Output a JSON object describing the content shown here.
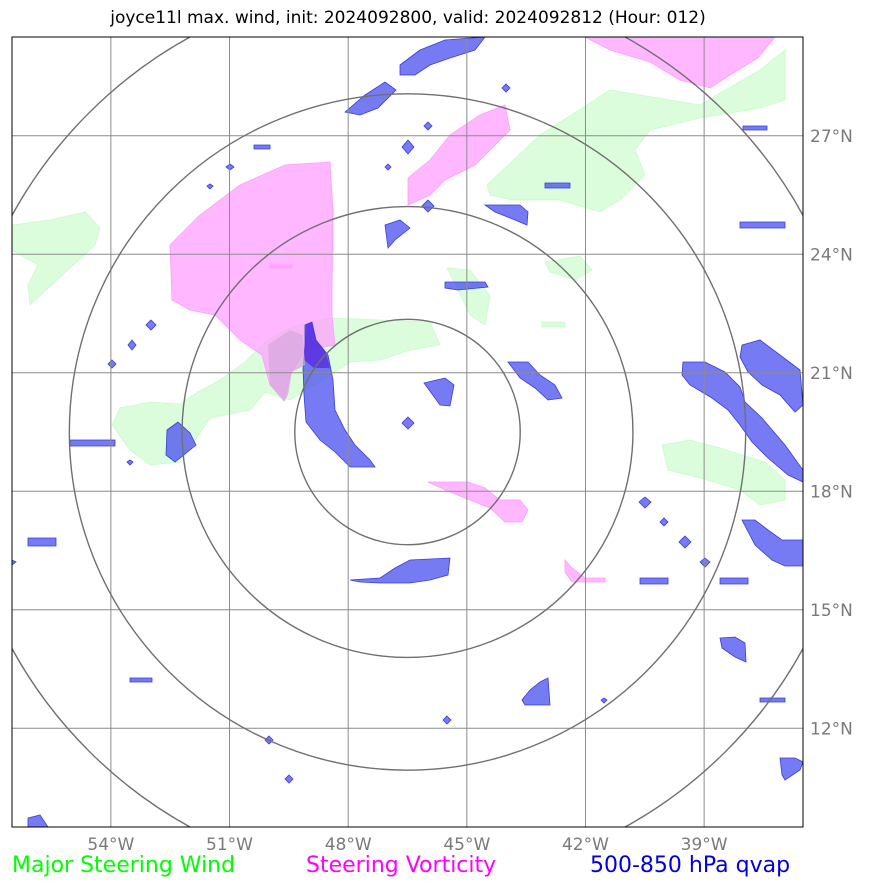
{
  "title": "joyce11l max. wind, init: 2024092800, valid: 2024092812 (Hour: 012)",
  "map": {
    "lon_range": [
      -56.5,
      -36.5
    ],
    "lat_range": [
      9.5,
      29.5
    ],
    "lon_ticks": [
      {
        "value": -54,
        "label": "54°W"
      },
      {
        "value": -51,
        "label": "51°W"
      },
      {
        "value": -48,
        "label": "48°W"
      },
      {
        "value": -45,
        "label": "45°W"
      },
      {
        "value": -42,
        "label": "42°W"
      },
      {
        "value": -39,
        "label": "39°W"
      }
    ],
    "lat_ticks": [
      {
        "value": 12,
        "label": "12°N"
      },
      {
        "value": 15,
        "label": "15°N"
      },
      {
        "value": 18,
        "label": "18°N"
      },
      {
        "value": 21,
        "label": "21°N"
      },
      {
        "value": 24,
        "label": "24°N"
      },
      {
        "value": 27,
        "label": "27°N"
      }
    ],
    "range_rings": {
      "center": {
        "lon": -46.5,
        "lat": 19.5
      },
      "radii_deg": [
        2.85,
        5.7,
        8.55,
        11.4
      ]
    },
    "grid": true,
    "colors": {
      "wind": "#c8fcc8",
      "vorticity": "#ff9cff",
      "qvap": "#5055f0",
      "qvap_edge": "#3a3ed8",
      "grid": "#8c8c8c",
      "ring": "#707070",
      "tick_label": "#7a7a7a"
    }
  },
  "legend": [
    {
      "label": "Major Steering Wind",
      "color": "#00ff00"
    },
    {
      "label": "Steering Vorticity",
      "color": "#ff00ff"
    },
    {
      "label": "500-850 hPa qvap",
      "color": "#0000dd"
    }
  ]
}
